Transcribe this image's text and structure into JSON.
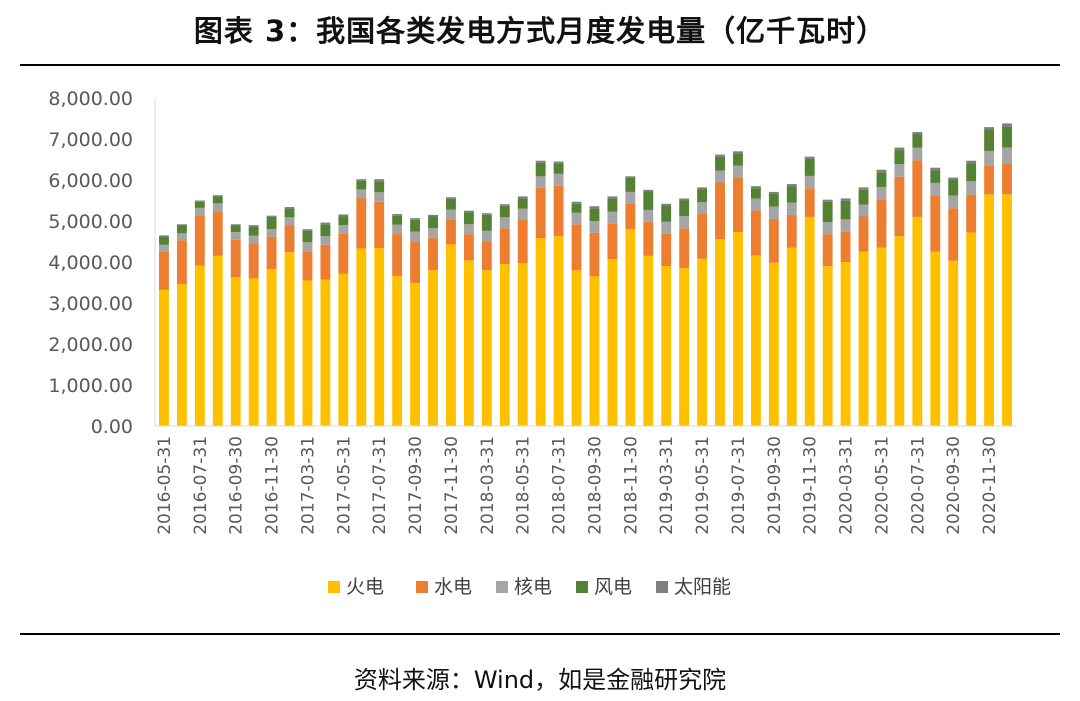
{
  "title": "图表 3：我国各类发电方式月度发电量（亿千瓦时）",
  "source": "资料来源：Wind，如是金融研究院",
  "chart_data": {
    "type": "bar",
    "stacked": true,
    "title": "图表 3：我国各类发电方式月度发电量（亿千瓦时）",
    "ylabel": "",
    "xlabel": "",
    "ylim": [
      0,
      8000
    ],
    "yticks": [
      "0.00",
      "1,000.00",
      "2,000.00",
      "3,000.00",
      "4,000.00",
      "5,000.00",
      "6,000.00",
      "7,000.00",
      "8,000.00"
    ],
    "categories": [
      "2016-05-31",
      "2016-06-30",
      "2016-07-31",
      "2016-08-31",
      "2016-09-30",
      "2016-10-31",
      "2016-11-30",
      "2016-12-31",
      "2017-03-31",
      "2017-04-30",
      "2017-05-31",
      "2017-06-30",
      "2017-07-31",
      "2017-08-31",
      "2017-09-30",
      "2017-10-31",
      "2017-11-30",
      "2017-12-31",
      "2018-03-31",
      "2018-04-30",
      "2018-05-31",
      "2018-06-30",
      "2018-07-31",
      "2018-08-31",
      "2018-09-30",
      "2018-10-31",
      "2018-11-30",
      "2018-12-31",
      "2019-03-31",
      "2019-04-30",
      "2019-05-31",
      "2019-06-30",
      "2019-07-31",
      "2019-08-31",
      "2019-09-30",
      "2019-10-31",
      "2019-11-30",
      "2019-12-31",
      "2020-03-31",
      "2020-04-30",
      "2020-05-31",
      "2020-06-30",
      "2020-07-31",
      "2020-08-31",
      "2020-09-30",
      "2020-10-31",
      "2020-11-30",
      "2020-12-31"
    ],
    "visible_xticks": [
      "2016-05-31",
      "2016-07-31",
      "2016-09-30",
      "2016-11-30",
      "2017-03-31",
      "2017-05-31",
      "2017-07-31",
      "2017-09-30",
      "2017-11-30",
      "2018-03-31",
      "2018-05-31",
      "2018-07-31",
      "2018-09-30",
      "2018-11-30",
      "2019-03-31",
      "2019-05-31",
      "2019-07-31",
      "2019-09-30",
      "2019-11-30",
      "2020-03-31",
      "2020-05-31",
      "2020-07-31",
      "2020-09-30",
      "2020-11-30"
    ],
    "legend_position": "bottom",
    "series": [
      {
        "name": "火电",
        "color": "#FFC000",
        "values": [
          3320,
          3460,
          3910,
          4150,
          3630,
          3600,
          3830,
          4240,
          3550,
          3570,
          3720,
          4330,
          4340,
          3660,
          3490,
          3800,
          4430,
          4040,
          3800,
          3950,
          3970,
          4580,
          4630,
          3800,
          3650,
          4070,
          4800,
          4150,
          3900,
          3850,
          4080,
          4560,
          4730,
          4160,
          3980,
          4350,
          5100,
          3900,
          4000,
          4250,
          4350,
          4630,
          5100,
          4250,
          4030,
          4720,
          5650,
          5650
        ]
      },
      {
        "name": "水电",
        "color": "#ED7D31",
        "values": [
          940,
          1070,
          1220,
          1090,
          910,
          860,
          780,
          650,
          710,
          850,
          970,
          1230,
          1130,
          1020,
          1020,
          790,
          610,
          640,
          710,
          870,
          1070,
          1230,
          1230,
          1120,
          1060,
          860,
          620,
          830,
          790,
          970,
          1100,
          1380,
          1320,
          1100,
          1070,
          800,
          700,
          780,
          740,
          860,
          1170,
          1450,
          1380,
          1360,
          1280,
          920,
          700,
          760
        ]
      },
      {
        "name": "核电",
        "color": "#A5A5A5",
        "values": [
          160,
          170,
          190,
          190,
          190,
          180,
          190,
          200,
          220,
          210,
          210,
          210,
          230,
          230,
          230,
          240,
          240,
          240,
          250,
          270,
          260,
          280,
          290,
          280,
          290,
          300,
          290,
          290,
          290,
          300,
          280,
          290,
          300,
          290,
          300,
          300,
          300,
          290,
          300,
          290,
          310,
          310,
          310,
          320,
          310,
          330,
          360,
          380
        ]
      },
      {
        "name": "风电",
        "color": "#548235",
        "values": [
          200,
          190,
          150,
          170,
          160,
          230,
          300,
          220,
          280,
          290,
          220,
          210,
          270,
          220,
          290,
          280,
          260,
          290,
          390,
          280,
          250,
          330,
          250,
          220,
          310,
          320,
          340,
          450,
          400,
          390,
          310,
          340,
          300,
          250,
          310,
          400,
          420,
          500,
          450,
          360,
          360,
          340,
          320,
          310,
          380,
          440,
          520,
          510
        ]
      },
      {
        "name": "太阳能",
        "color": "#7F7F7F",
        "values": [
          30,
          30,
          30,
          30,
          30,
          30,
          30,
          30,
          40,
          40,
          40,
          40,
          50,
          40,
          40,
          40,
          40,
          40,
          40,
          40,
          50,
          50,
          50,
          50,
          50,
          50,
          40,
          40,
          40,
          40,
          50,
          50,
          50,
          50,
          50,
          50,
          50,
          50,
          60,
          60,
          60,
          60,
          60,
          60,
          60,
          60,
          60,
          80
        ]
      }
    ]
  }
}
